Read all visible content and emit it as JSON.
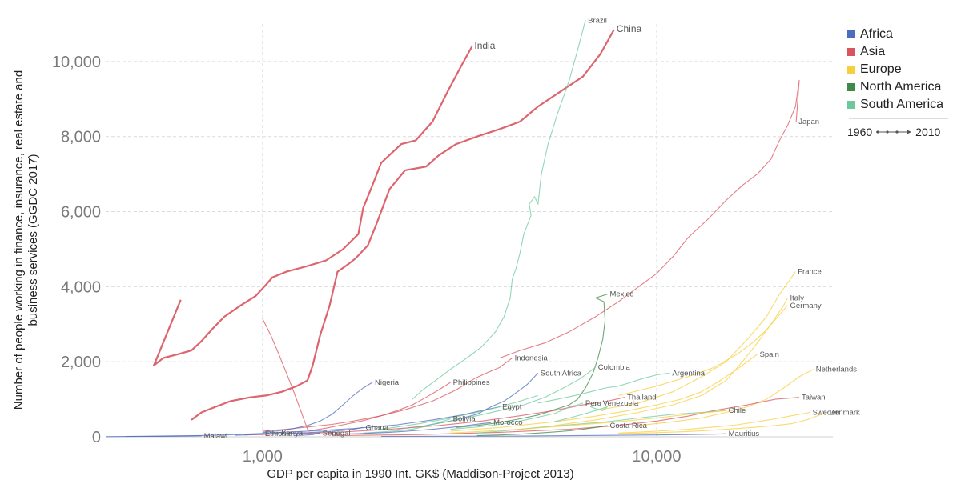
{
  "colors": {
    "Africa": "#4c6cbd",
    "Asia": "#d8545e",
    "Europe": "#f5cf3e",
    "North America": "#3f8a4a",
    "South America": "#6dc99c",
    "Oceania": "#b07040"
  },
  "legend": {
    "items": [
      {
        "label": "Africa",
        "color": "#4c6cbd"
      },
      {
        "label": "Asia",
        "color": "#d8545e"
      },
      {
        "label": "Europe",
        "color": "#f5cf3e"
      },
      {
        "label": "North America",
        "color": "#3f8a4a"
      },
      {
        "label": "South America",
        "color": "#6dc99c"
      }
    ],
    "time_start": "1960",
    "time_end": "2010"
  },
  "chart_data": {
    "type": "line",
    "xlabel": "GDP per capita in 1990 Int. GK$ (Maddison-Project 2013)",
    "ylabel": "Number of people working in finance, insurance, real estate and business services (GGDC 2017)",
    "xscale": "log",
    "xlim": [
      400,
      28000
    ],
    "ylim": [
      0,
      11000
    ],
    "x_ticks": [
      1000,
      10000
    ],
    "x_tick_labels": [
      "1,000",
      "10,000"
    ],
    "y_ticks": [
      0,
      2000,
      4000,
      6000,
      8000,
      10000
    ],
    "y_tick_labels": [
      "0",
      "2,000",
      "4,000",
      "6,000",
      "8,000",
      "10,000"
    ],
    "grid": true,
    "legend_position": "right",
    "series": [
      {
        "name": "India",
        "region": "Asia",
        "label_size": "big",
        "x": [
          620,
          530,
          560,
          610,
          660,
          700,
          750,
          800,
          880,
          960,
          1020,
          1060,
          1150,
          1300,
          1450,
          1600,
          1750,
          1800,
          1900,
          2000,
          2250,
          2450,
          2700,
          2950,
          3200,
          3400
        ],
        "y": [
          3650,
          1900,
          2100,
          2200,
          2300,
          2550,
          2900,
          3200,
          3500,
          3750,
          4050,
          4250,
          4400,
          4550,
          4700,
          5000,
          5400,
          6100,
          6700,
          7300,
          7800,
          7900,
          8400,
          9200,
          9900,
          10400
        ]
      },
      {
        "name": "China",
        "region": "Asia",
        "label_size": "big",
        "x": [
          660,
          700,
          760,
          830,
          930,
          1020,
          1120,
          1220,
          1300,
          1340,
          1400,
          1480,
          1550,
          1650,
          1720,
          1850,
          1950,
          2100,
          2300,
          2600,
          2800,
          3100,
          3500,
          4000,
          4500,
          5000,
          5700,
          6500,
          7200,
          7800
        ],
        "y": [
          450,
          650,
          800,
          950,
          1050,
          1100,
          1200,
          1350,
          1500,
          1900,
          2700,
          3500,
          4400,
          4600,
          4750,
          5100,
          5700,
          6600,
          7100,
          7200,
          7500,
          7800,
          8000,
          8200,
          8400,
          8800,
          9200,
          9600,
          10200,
          10850
        ]
      },
      {
        "name": "Brazil",
        "region": "South America",
        "label_size": "small",
        "x": [
          2400,
          2550,
          2750,
          3000,
          3300,
          3600,
          3900,
          4100,
          4250,
          4300,
          4400,
          4500,
          4600,
          4800,
          4750,
          4900,
          5000,
          5100,
          5300,
          5600,
          6000,
          6300,
          6600
        ],
        "y": [
          1000,
          1250,
          1500,
          1800,
          2100,
          2400,
          2800,
          3200,
          3700,
          4200,
          4500,
          4900,
          5400,
          5900,
          6200,
          6400,
          6200,
          7000,
          7800,
          8600,
          9500,
          10300,
          11100
        ]
      },
      {
        "name": "Japan",
        "region": "Asia",
        "label_size": "small",
        "x": [
          4000,
          4500,
          5200,
          6000,
          7000,
          8000,
          9000,
          10000,
          11000,
          12000,
          13500,
          15000,
          16500,
          18000,
          19500,
          20500,
          21500,
          22500,
          23000,
          22600
        ],
        "y": [
          2100,
          2300,
          2500,
          2800,
          3200,
          3600,
          4000,
          4350,
          4800,
          5300,
          5800,
          6300,
          6700,
          7000,
          7400,
          7900,
          8300,
          8800,
          9500,
          8400
        ]
      },
      {
        "name": "Mexico",
        "region": "North America",
        "label_size": "small",
        "x": [
          3100,
          3500,
          4000,
          4500,
          5000,
          5500,
          6000,
          6300,
          6600,
          6900,
          7100,
          7300,
          7400,
          7350,
          7000,
          7500
        ],
        "y": [
          250,
          300,
          380,
          480,
          580,
          720,
          850,
          1000,
          1300,
          1700,
          2100,
          2600,
          3100,
          3600,
          3700,
          3800
        ]
      },
      {
        "name": "Indonesia",
        "region": "Asia",
        "label_size": "small",
        "x": [
          1000,
          1150,
          1300,
          1500,
          1700,
          2000,
          2300,
          2700,
          3100,
          3450,
          3700,
          4000,
          4300
        ],
        "y": [
          150,
          200,
          260,
          330,
          420,
          560,
          720,
          950,
          1250,
          1550,
          1700,
          1850,
          2100
        ]
      },
      {
        "name": "Nigeria",
        "region": "Africa",
        "label_size": "small",
        "x": [
          1000,
          1100,
          1200,
          1300,
          1400,
          1500,
          1600,
          1700,
          1800,
          1900
        ],
        "y": [
          120,
          160,
          220,
          300,
          420,
          600,
          850,
          1100,
          1300,
          1450
        ]
      },
      {
        "name": "Philippines",
        "region": "Asia",
        "label_size": "small",
        "x": [
          1300,
          1450,
          1600,
          1800,
          2000,
          2200,
          2400,
          2600,
          2800,
          3000
        ],
        "y": [
          150,
          230,
          320,
          430,
          560,
          700,
          850,
          1050,
          1250,
          1450
        ]
      },
      {
        "name": "South Africa",
        "region": "Africa",
        "label_size": "small",
        "x": [
          2600,
          3000,
          3500,
          3800,
          4100,
          4300,
          4500,
          4700,
          4900,
          5000
        ],
        "y": [
          300,
          420,
          600,
          800,
          950,
          1100,
          1250,
          1400,
          1600,
          1700
        ]
      },
      {
        "name": "Colombia",
        "region": "South America",
        "label_size": "small",
        "x": [
          2200,
          2600,
          3000,
          3500,
          4000,
          4600,
          5200,
          5800,
          6400,
          7000
        ],
        "y": [
          200,
          300,
          420,
          560,
          700,
          850,
          1050,
          1300,
          1550,
          1850
        ]
      },
      {
        "name": "Argentina",
        "region": "South America",
        "label_size": "small",
        "x": [
          5000,
          5600,
          6200,
          6800,
          7400,
          8000,
          8600,
          9200,
          10000,
          10800
        ],
        "y": [
          900,
          1000,
          1100,
          1200,
          1300,
          1350,
          1450,
          1550,
          1650,
          1700
        ]
      },
      {
        "name": "Spain",
        "region": "Europe",
        "label_size": "small",
        "x": [
          3000,
          4000,
          5500,
          7000,
          8500,
          10000,
          11500,
          13000,
          14500,
          16000,
          18000
        ],
        "y": [
          150,
          250,
          400,
          550,
          700,
          850,
          1000,
          1200,
          1500,
          1800,
          2200
        ]
      },
      {
        "name": "Italy",
        "region": "Europe",
        "label_size": "small",
        "x": [
          5500,
          7000,
          9000,
          11000,
          13000,
          15000,
          16500,
          18000,
          19500,
          21000,
          21500
        ],
        "y": [
          300,
          450,
          650,
          850,
          1100,
          1500,
          2000,
          2500,
          3000,
          3500,
          3700
        ]
      },
      {
        "name": "Germany",
        "region": "Europe",
        "label_size": "small",
        "x": [
          8000,
          10000,
          12000,
          14000,
          16000,
          17500,
          19000,
          20500,
          21500
        ],
        "y": [
          1100,
          1350,
          1600,
          1850,
          2200,
          2500,
          2850,
          3250,
          3500
        ]
      },
      {
        "name": "France",
        "region": "Europe",
        "label_size": "small",
        "x": [
          7000,
          9000,
          11000,
          13000,
          15000,
          17000,
          19000,
          20500,
          21500,
          22500
        ],
        "y": [
          700,
          900,
          1200,
          1600,
          2000,
          2600,
          3200,
          3800,
          4100,
          4400
        ]
      },
      {
        "name": "Netherlands",
        "region": "Europe",
        "label_size": "small",
        "x": [
          9000,
          11000,
          13000,
          15000,
          17000,
          19000,
          21000,
          23000,
          25000
        ],
        "y": [
          300,
          400,
          500,
          650,
          800,
          1000,
          1300,
          1600,
          1800
        ]
      },
      {
        "name": "Taiwan",
        "region": "Asia",
        "label_size": "small",
        "x": [
          1500,
          2500,
          4000,
          6000,
          8000,
          10000,
          12000,
          14000,
          17000,
          20000,
          23000
        ],
        "y": [
          30,
          60,
          120,
          200,
          300,
          420,
          550,
          700,
          850,
          1000,
          1050
        ]
      },
      {
        "name": "Sweden",
        "region": "Europe",
        "label_size": "small",
        "x": [
          8000,
          10000,
          12000,
          14000,
          16000,
          18000,
          20000,
          22000,
          24500
        ],
        "y": [
          100,
          150,
          200,
          260,
          320,
          400,
          480,
          560,
          650
        ]
      },
      {
        "name": "Denmark",
        "region": "Europe",
        "label_size": "small",
        "x": [
          8000,
          10000,
          12000,
          14000,
          16000,
          18000,
          20000,
          22000,
          24000,
          27000
        ],
        "y": [
          80,
          110,
          140,
          180,
          220,
          260,
          300,
          350,
          450,
          650
        ]
      },
      {
        "name": "Thailand",
        "region": "Asia",
        "label_size": "small",
        "x": [
          900,
          1200,
          1600,
          2100,
          2800,
          3600,
          4500,
          5500,
          6500,
          7500,
          8300
        ],
        "y": [
          50,
          80,
          130,
          200,
          300,
          420,
          560,
          700,
          850,
          950,
          1050
        ]
      },
      {
        "name": "Venezuela",
        "region": "South America",
        "label_size": "small",
        "x": [
          5500,
          6000,
          6500,
          7000,
          7500,
          7300,
          7000,
          6800,
          7000,
          7200
        ],
        "y": [
          400,
          500,
          600,
          700,
          800,
          700,
          750,
          800,
          850,
          900
        ]
      },
      {
        "name": "Chile",
        "region": "South America",
        "label_size": "small",
        "x": [
          3500,
          4000,
          4500,
          5000,
          6000,
          7500,
          9000,
          11000,
          13000,
          15000
        ],
        "y": [
          100,
          150,
          200,
          250,
          320,
          400,
          500,
          600,
          650,
          700
        ]
      },
      {
        "name": "Peru",
        "region": "South America",
        "label_size": "small",
        "x": [
          3000,
          3500,
          4000,
          4500,
          5000,
          5500,
          5800,
          6000,
          6300,
          6500
        ],
        "y": [
          200,
          260,
          330,
          420,
          520,
          620,
          720,
          800,
          850,
          900
        ]
      },
      {
        "name": "Egypt",
        "region": "Africa",
        "label_size": "small",
        "x": [
          1000,
          1300,
          1700,
          2200,
          2700,
          3200,
          3600,
          4000
        ],
        "y": [
          100,
          150,
          220,
          320,
          450,
          580,
          700,
          800
        ]
      },
      {
        "name": "Bolivia",
        "region": "South America",
        "label_size": "small",
        "x": [
          1800,
          2000,
          2200,
          2400,
          2500,
          2600,
          2700,
          2800,
          2900,
          3000
        ],
        "y": [
          100,
          130,
          160,
          200,
          240,
          280,
          330,
          380,
          430,
          480
        ]
      },
      {
        "name": "Morocco",
        "region": "Africa",
        "label_size": "small",
        "x": [
          1500,
          1800,
          2100,
          2400,
          2700,
          3000,
          3300,
          3600,
          3800
        ],
        "y": [
          60,
          90,
          120,
          160,
          200,
          250,
          300,
          350,
          380
        ]
      },
      {
        "name": "Costa Rica",
        "region": "North America",
        "label_size": "small",
        "x": [
          3500,
          4000,
          4500,
          5000,
          5500,
          6000,
          6500,
          7000,
          7500
        ],
        "y": [
          30,
          50,
          70,
          100,
          130,
          160,
          200,
          250,
          300
        ]
      },
      {
        "name": "Mauritius",
        "region": "Africa",
        "label_size": "small",
        "x": [
          2000,
          3000,
          4500,
          6000,
          8000,
          10000,
          12000,
          14000,
          15000
        ],
        "y": [
          10,
          15,
          20,
          30,
          40,
          50,
          60,
          70,
          80
        ]
      },
      {
        "name": "Ghana",
        "region": "Africa",
        "label_size": "small",
        "x": [
          1100,
          1200,
          1300,
          1400,
          1500,
          1600,
          1700,
          1800
        ],
        "y": [
          80,
          100,
          110,
          130,
          150,
          170,
          200,
          250
        ]
      },
      {
        "name": "Senegal",
        "region": "Africa",
        "label_size": "small",
        "x": [
          1200,
          1250,
          1300,
          1350,
          1300,
          1350,
          1400
        ],
        "y": [
          30,
          40,
          50,
          60,
          70,
          80,
          100
        ]
      },
      {
        "name": "Kenya",
        "region": "Africa",
        "label_size": "small",
        "x": [
          850,
          900,
          950,
          1000,
          1050,
          1100
        ],
        "y": [
          40,
          50,
          60,
          70,
          80,
          100
        ]
      },
      {
        "name": "Ethiopia",
        "region": "Africa",
        "label_size": "small",
        "x": [
          450,
          500,
          550,
          600,
          700,
          800,
          900,
          1000
        ],
        "y": [
          10,
          15,
          20,
          25,
          35,
          50,
          70,
          90
        ]
      },
      {
        "name": "Malawi",
        "region": "Africa",
        "label_size": "small",
        "x": [
          400,
          450,
          500,
          550,
          600,
          650,
          700
        ],
        "y": [
          5,
          8,
          10,
          12,
          15,
          20,
          25
        ]
      },
      {
        "name": "",
        "region": "Asia",
        "label_size": "none",
        "x": [
          1000,
          1050,
          1100,
          1150,
          1200,
          1250,
          1300
        ],
        "y": [
          3150,
          2700,
          2200,
          1700,
          1200,
          700,
          200
        ]
      },
      {
        "name": "",
        "region": "South America",
        "label_size": "none",
        "x": [
          2000,
          2500,
          3000,
          3500,
          4000,
          4500,
          5000
        ],
        "y": [
          200,
          350,
          500,
          650,
          800,
          950,
          1100
        ]
      },
      {
        "name": "",
        "region": "Europe",
        "label_size": "none",
        "x": [
          3000,
          4500,
          6000,
          8000,
          10000,
          12000,
          15000
        ],
        "y": [
          100,
          200,
          300,
          400,
          500,
          600,
          700
        ]
      }
    ]
  }
}
